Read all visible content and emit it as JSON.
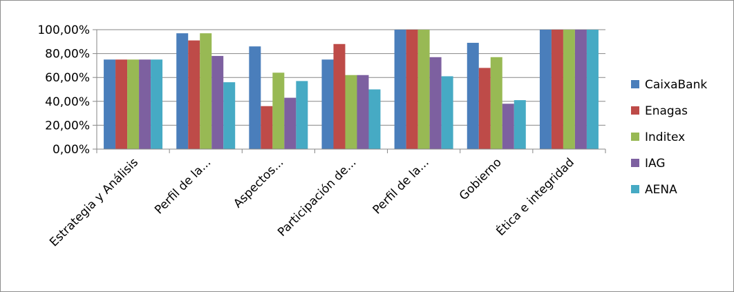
{
  "chart_data": {
    "type": "bar",
    "categories": [
      "Estrategia y Análisis",
      "Perfil de la...",
      "Aspectos...",
      "Participación de...",
      "Perfil de la...",
      "Gobierno",
      "Ética e integridad"
    ],
    "series": [
      {
        "name": "CaixaBank",
        "color": "#4a7ebb",
        "values": [
          75,
          97,
          86,
          75,
          100,
          89,
          100
        ]
      },
      {
        "name": "Enagas",
        "color": "#be4b48",
        "values": [
          75,
          91,
          36,
          88,
          100,
          68,
          100
        ]
      },
      {
        "name": "Inditex",
        "color": "#98b954",
        "values": [
          75,
          97,
          64,
          62,
          100,
          77,
          100
        ]
      },
      {
        "name": "IAG",
        "color": "#7d60a0",
        "values": [
          75,
          78,
          43,
          62,
          77,
          38,
          100
        ]
      },
      {
        "name": "AENA",
        "color": "#46aac4",
        "values": [
          75,
          56,
          57,
          50,
          61,
          41,
          100
        ]
      }
    ],
    "y_ticks": [
      "0,00%",
      "20,00%",
      "40,00%",
      "60,00%",
      "80,00%",
      "100,00%"
    ],
    "ylim": [
      0,
      100
    ],
    "y_unit": "%",
    "grid": true,
    "legend_position": "right",
    "title": "",
    "xlabel": "",
    "ylabel": ""
  }
}
